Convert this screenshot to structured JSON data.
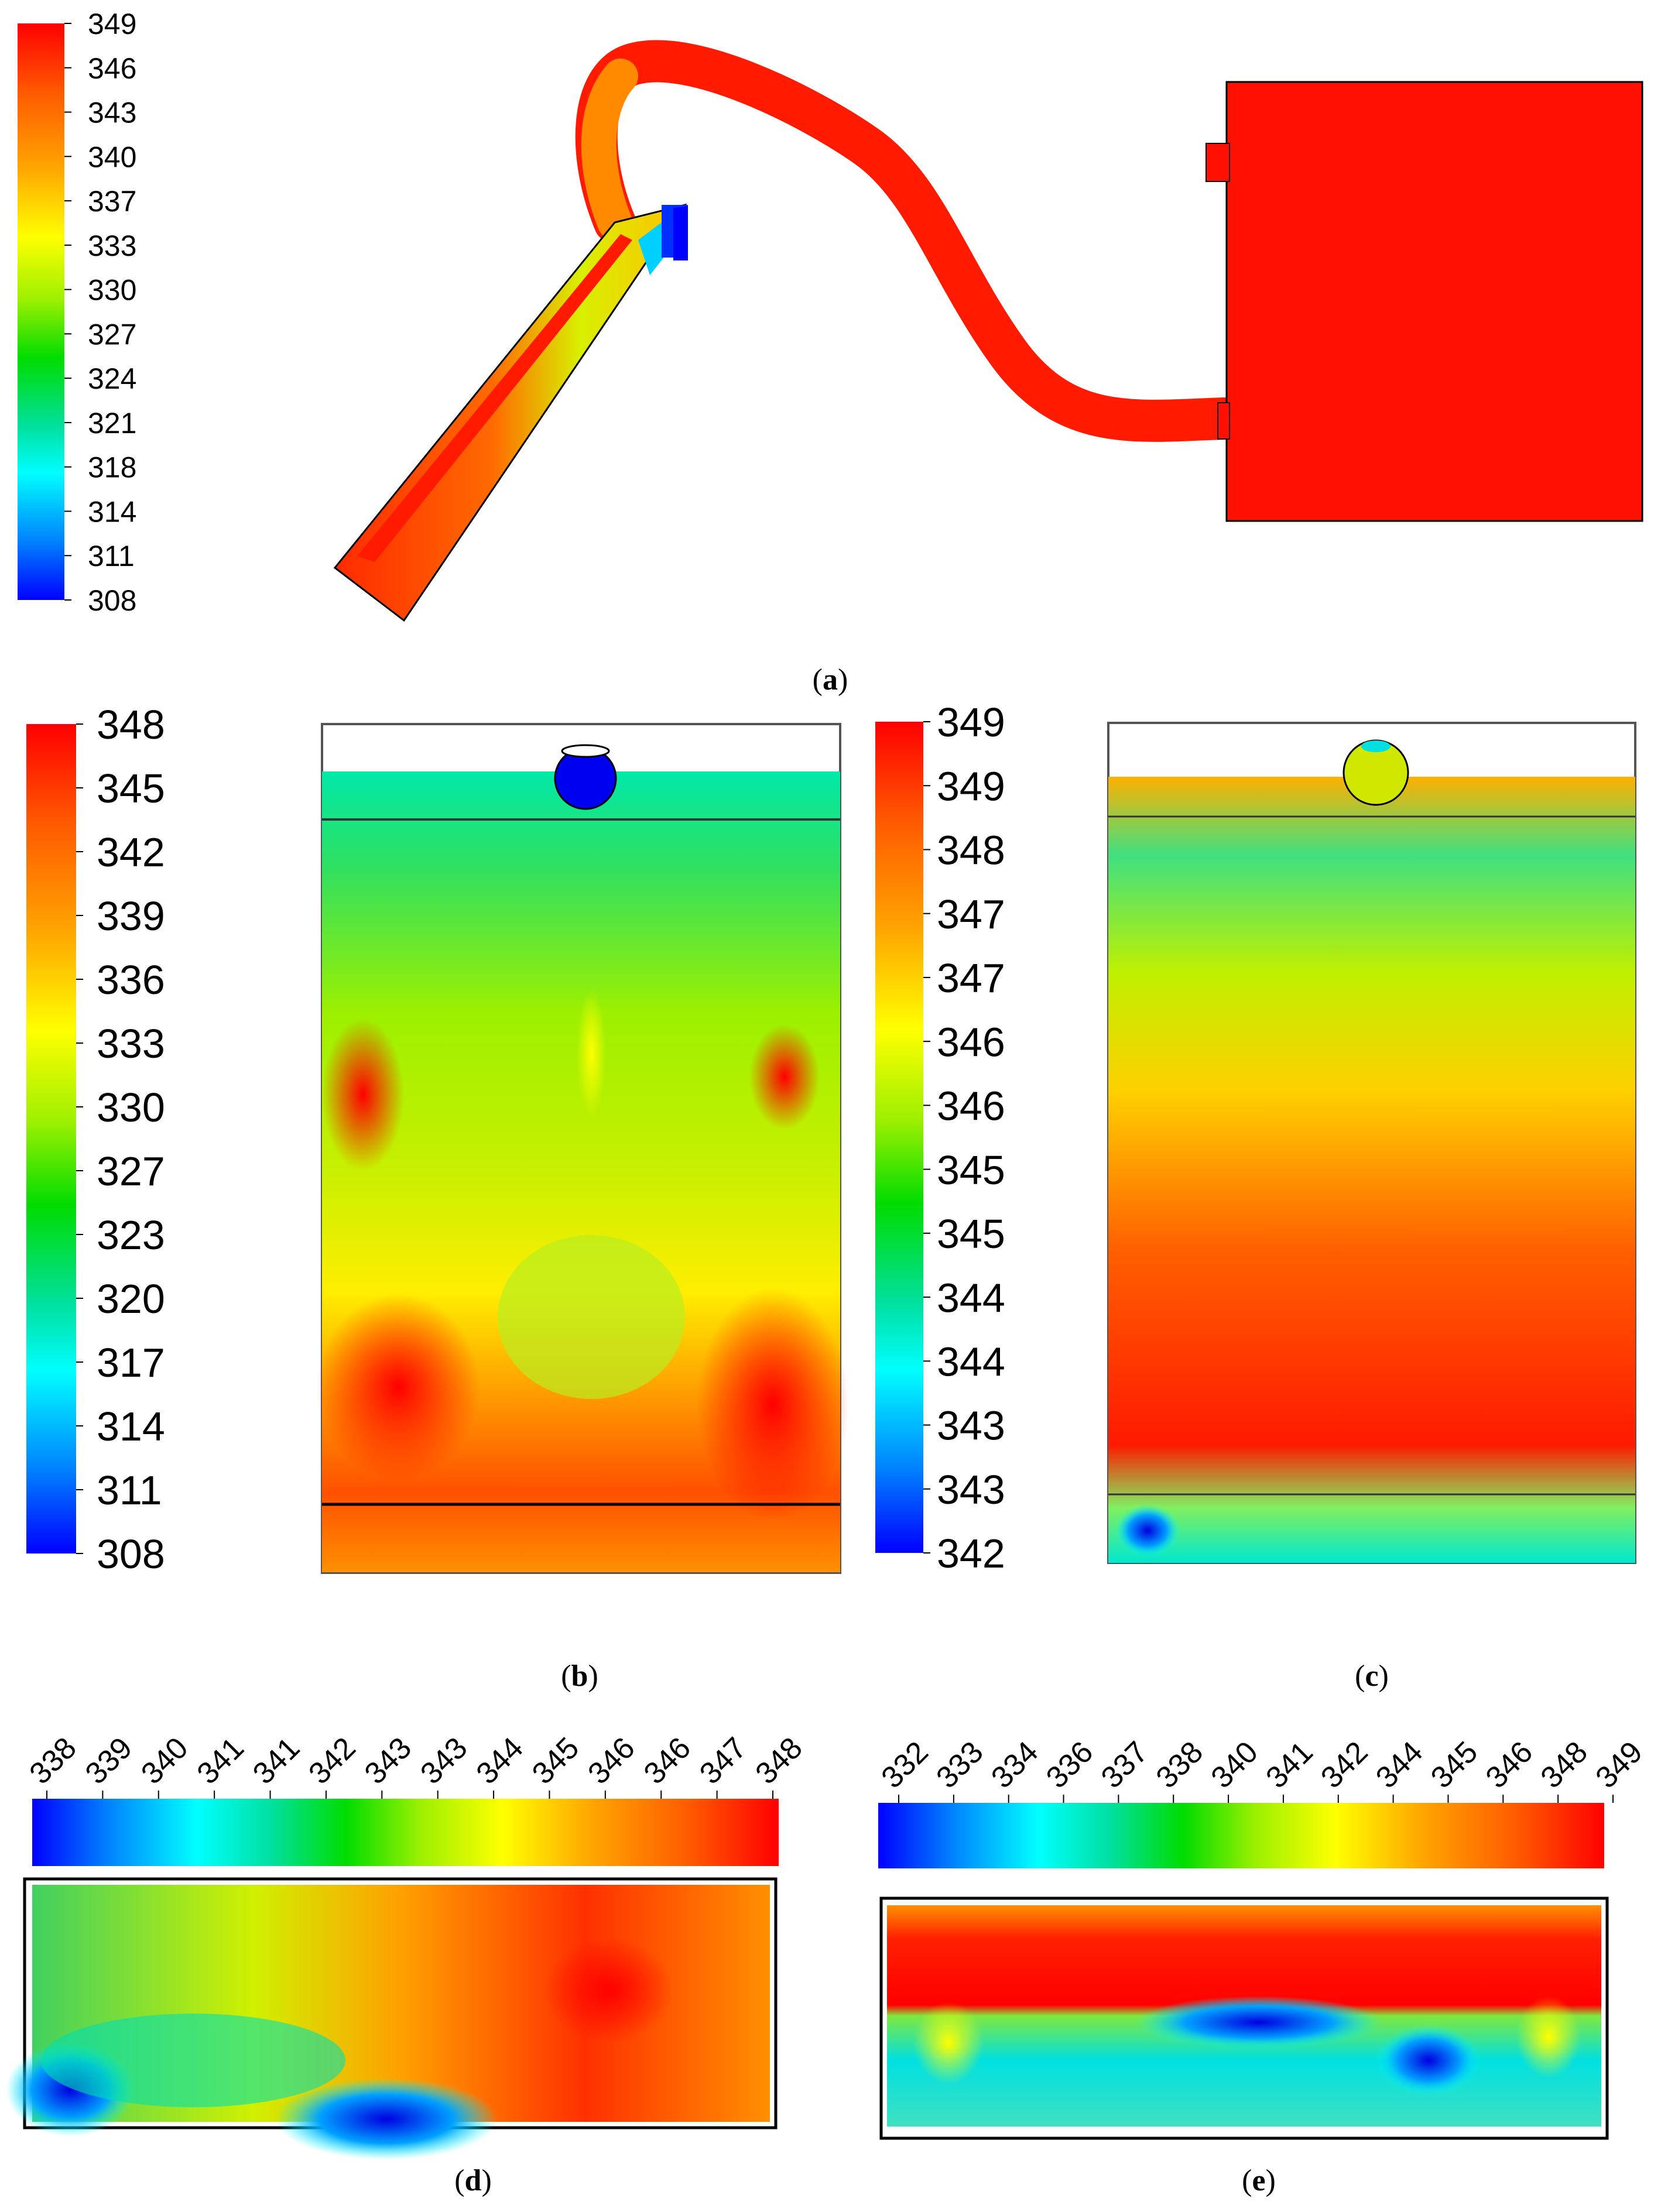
{
  "colors": {
    "scale": [
      "#0000ff",
      "#0080ff",
      "#00ffff",
      "#00e08a",
      "#00dc00",
      "#7ef000",
      "#ffff00",
      "#ffb000",
      "#ff7800",
      "#ff0000"
    ],
    "outline": "#000000"
  },
  "panels": {
    "a": {
      "caption_letter": "a",
      "scale_labels": [
        "349",
        "346",
        "343",
        "340",
        "337",
        "333",
        "330",
        "327",
        "324",
        "321",
        "318",
        "314",
        "311",
        "308"
      ]
    },
    "b": {
      "caption_letter": "b",
      "scale_labels": [
        "348",
        "345",
        "342",
        "339",
        "336",
        "333",
        "330",
        "327",
        "323",
        "320",
        "317",
        "314",
        "311",
        "308"
      ]
    },
    "c": {
      "caption_letter": "c",
      "scale_labels": [
        "349",
        "349",
        "348",
        "347",
        "347",
        "346",
        "346",
        "345",
        "345",
        "344",
        "344",
        "343",
        "343",
        "342"
      ]
    },
    "d": {
      "caption_letter": "d",
      "scale_labels": [
        "338",
        "339",
        "340",
        "341",
        "341",
        "342",
        "343",
        "343",
        "344",
        "345",
        "346",
        "346",
        "347",
        "348"
      ]
    },
    "e": {
      "caption_letter": "e",
      "scale_labels": [
        "332",
        "333",
        "334",
        "336",
        "337",
        "338",
        "340",
        "341",
        "342",
        "344",
        "345",
        "346",
        "348",
        "349"
      ]
    }
  }
}
